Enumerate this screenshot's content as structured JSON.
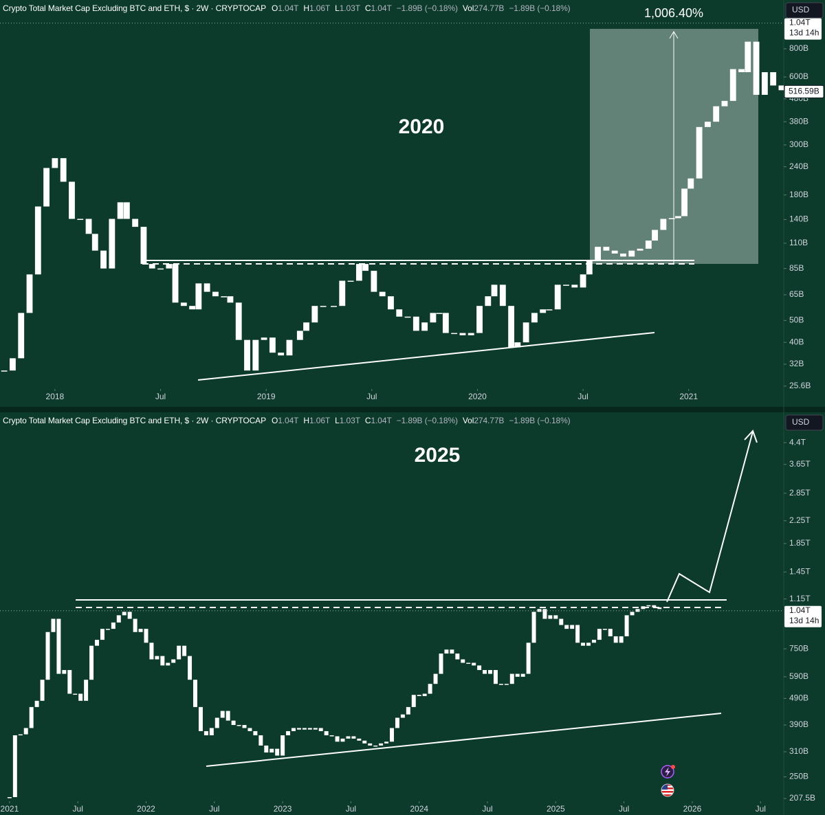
{
  "chart_data": [
    {
      "type": "candlestick",
      "title": "2020",
      "measure_label": "1,006.40%",
      "header": {
        "symbol": "Crypto Total Market Cap Excluding BTC and ETH, $ · 2W · CRYPTOCAP",
        "ohlc": [
          {
            "key": "O",
            "value": "1.04T"
          },
          {
            "key": "H",
            "value": "1.06T"
          },
          {
            "key": "L",
            "value": "1.03T"
          },
          {
            "key": "C",
            "value": "1.04T"
          }
        ],
        "change": "−1.89B (−0.18%)",
        "volume": {
          "key": "Vol",
          "value": "274.77B"
        },
        "volume_change": "−1.89B (−0.18%)"
      },
      "currency": "USD",
      "log": true,
      "grid": false,
      "color": "#ffffff",
      "x": [
        2017.76,
        2017.8,
        2017.84,
        2017.88,
        2017.92,
        2017.96,
        2018,
        2018.04,
        2018.08,
        2018.12,
        2018.16,
        2018.19,
        2018.23,
        2018.27,
        2018.31,
        2018.34,
        2018.38,
        2018.42,
        2018.46,
        2018.5,
        2018.54,
        2018.57,
        2018.61,
        2018.65,
        2018.68,
        2018.72,
        2018.76,
        2018.8,
        2018.83,
        2018.87,
        2018.91,
        2018.95,
        2018.99,
        2019.03,
        2019.07,
        2019.11,
        2019.16,
        2019.19,
        2019.23,
        2019.27,
        2019.32,
        2019.36,
        2019.4,
        2019.44,
        2019.47,
        2019.51,
        2019.55,
        2019.59,
        2019.63,
        2019.67,
        2019.71,
        2019.75,
        2019.79,
        2019.82,
        2019.85,
        2019.89,
        2019.93,
        2019.97,
        2020.01,
        2020.05,
        2020.08,
        2020.12,
        2020.16,
        2020.19,
        2020.23,
        2020.27,
        2020.31,
        2020.34,
        2020.38,
        2020.42,
        2020.46,
        2020.5,
        2020.53,
        2020.57,
        2020.61,
        2020.65,
        2020.69,
        2020.73,
        2020.77,
        2020.81,
        2020.84,
        2020.88,
        2020.92,
        2020.95,
        2020.98,
        2021.01,
        2021.05,
        2021.09,
        2021.13,
        2021.17,
        2021.21,
        2021.25,
        2021.28,
        2021.32,
        2021.36,
        2021.4,
        2021.44
      ],
      "values": [
        30,
        34,
        54,
        80,
        160,
        237,
        262,
        206,
        141,
        141,
        121,
        102,
        85,
        141,
        167,
        141,
        130,
        89,
        85,
        85,
        89,
        60,
        58,
        56,
        73,
        67,
        64,
        64,
        60,
        41,
        30,
        41,
        42,
        36,
        35,
        41,
        45,
        49,
        58,
        58,
        58,
        75,
        75,
        89,
        83,
        67,
        64,
        56,
        52,
        52,
        45,
        49,
        54,
        54,
        44,
        44,
        43,
        44,
        58,
        64,
        72,
        58,
        38,
        40,
        49,
        54,
        56,
        56,
        72,
        72,
        70,
        80,
        92,
        106,
        102,
        99,
        96,
        102,
        104,
        113,
        126,
        141,
        142,
        145,
        192,
        213,
        360,
        380,
        445,
        470,
        650,
        630,
        860,
        500,
        630,
        550,
        524
      ],
      "xlim": [
        2017.74,
        2021.45
      ],
      "xticks": [
        2018,
        {
          "value": 2018.5,
          "label": "Jul"
        },
        2019,
        {
          "value": 2019.5,
          "label": "Jul"
        },
        2020,
        {
          "value": 2020.5,
          "label": "Jul"
        },
        2021
      ],
      "ylim": [
        24.86,
        1316
      ],
      "yticks": [
        {
          "value": 25.6,
          "label": "25.6B"
        },
        {
          "value": 32,
          "label": "32B"
        },
        {
          "value": 40,
          "label": "40B"
        },
        {
          "value": 50,
          "label": "50B"
        },
        {
          "value": 65,
          "label": "65B"
        },
        {
          "value": 85,
          "label": "85B"
        },
        {
          "value": 110,
          "label": "110B"
        },
        {
          "value": 140,
          "label": "140B"
        },
        {
          "value": 180,
          "label": "180B"
        },
        {
          "value": 240,
          "label": "240B"
        },
        {
          "value": 300,
          "label": "300B"
        },
        {
          "value": 380,
          "label": "380B"
        },
        {
          "value": 480,
          "label": "480B"
        },
        {
          "value": 600,
          "label": "600B"
        },
        {
          "value": 800,
          "label": "800B"
        }
      ],
      "last_price": {
        "value": 1040,
        "label": "1.04T"
      },
      "countdown": "13d 14h",
      "price_marker": {
        "value": 516.59,
        "label": "516.59B"
      }
    },
    {
      "type": "candlestick",
      "title": "2025",
      "header": {
        "symbol": "Crypto Total Market Cap Excluding BTC and ETH, $ · 2W · CRYPTOCAP",
        "ohlc": [
          {
            "key": "O",
            "value": "1.04T"
          },
          {
            "key": "H",
            "value": "1.06T"
          },
          {
            "key": "L",
            "value": "1.03T"
          },
          {
            "key": "C",
            "value": "1.04T"
          }
        ],
        "change": "−1.89B (−0.18%)",
        "volume": {
          "key": "Vol",
          "value": "274.77B"
        },
        "volume_change": "−1.89B (−0.18%)"
      },
      "currency": "USD",
      "log": true,
      "grid": false,
      "color": "#ffffff",
      "x": [
        2021,
        2021.04,
        2021.08,
        2021.12,
        2021.16,
        2021.2,
        2021.24,
        2021.28,
        2021.32,
        2021.36,
        2021.4,
        2021.44,
        2021.48,
        2021.52,
        2021.56,
        2021.6,
        2021.64,
        2021.68,
        2021.72,
        2021.76,
        2021.8,
        2021.84,
        2021.88,
        2021.92,
        2021.96,
        2022,
        2022.04,
        2022.08,
        2022.12,
        2022.16,
        2022.2,
        2022.24,
        2022.28,
        2022.32,
        2022.36,
        2022.4,
        2022.44,
        2022.48,
        2022.52,
        2022.56,
        2022.6,
        2022.64,
        2022.68,
        2022.72,
        2022.76,
        2022.8,
        2022.84,
        2022.88,
        2022.92,
        2022.96,
        2023,
        2023.04,
        2023.08,
        2023.12,
        2023.16,
        2023.2,
        2023.24,
        2023.28,
        2023.32,
        2023.36,
        2023.4,
        2023.44,
        2023.48,
        2023.52,
        2023.56,
        2023.6,
        2023.64,
        2023.68,
        2023.72,
        2023.76,
        2023.8,
        2023.84,
        2023.88,
        2023.92,
        2023.96,
        2024,
        2024.04,
        2024.08,
        2024.12,
        2024.16,
        2024.2,
        2024.24,
        2024.28,
        2024.32,
        2024.36,
        2024.4,
        2024.44,
        2024.48,
        2024.52,
        2024.56,
        2024.6,
        2024.64,
        2024.68,
        2024.72,
        2024.76,
        2024.8,
        2024.84,
        2024.88,
        2024.92,
        2024.96,
        2025,
        2025.04,
        2025.08,
        2025.12,
        2025.16,
        2025.2,
        2025.24,
        2025.28,
        2025.32,
        2025.36,
        2025.4,
        2025.44,
        2025.48,
        2025.52,
        2025.56,
        2025.6,
        2025.64,
        2025.68,
        2025.72,
        2025.76
      ],
      "values": [
        210,
        357,
        360,
        380,
        455,
        480,
        575,
        866,
        970,
        605,
        625,
        510,
        510,
        480,
        575,
        770,
        810,
        890,
        890,
        940,
        1000,
        1030,
        970,
        866,
        890,
        790,
        685,
        705,
        650,
        665,
        685,
        770,
        705,
        575,
        455,
        370,
        357,
        380,
        415,
        440,
        405,
        390,
        390,
        380,
        370,
        357,
        327,
        308,
        318,
        300,
        357,
        370,
        380,
        375,
        380,
        375,
        380,
        370,
        357,
        354,
        338,
        347,
        354,
        347,
        341,
        333,
        327,
        327,
        333,
        338,
        380,
        415,
        427,
        455,
        505,
        500,
        510,
        555,
        605,
        720,
        745,
        720,
        685,
        665,
        665,
        650,
        625,
        605,
        625,
        555,
        555,
        555,
        605,
        590,
        605,
        790,
        1030,
        1055,
        970,
        1000,
        970,
        920,
        890,
        920,
        790,
        770,
        790,
        810,
        890,
        890,
        835,
        790,
        835,
        1000,
        1030,
        1055,
        1080,
        1090,
        1070,
        1055
      ],
      "xlim": [
        2020.93,
        2026.67
      ],
      "xticks": [
        2021,
        {
          "value": 2021.5,
          "label": "Jul"
        },
        2022,
        {
          "value": 2022.5,
          "label": "Jul"
        },
        2023,
        {
          "value": 2023.5,
          "label": "Jul"
        },
        2024,
        {
          "value": 2024.5,
          "label": "Jul"
        },
        2025,
        {
          "value": 2025.5,
          "label": "Jul"
        },
        2026,
        {
          "value": 2026.5,
          "label": "Jul"
        }
      ],
      "ylim": [
        202.7,
        5707
      ],
      "yticks": [
        {
          "value": 207.5,
          "label": "207.5B"
        },
        {
          "value": 250,
          "label": "250B"
        },
        {
          "value": 310,
          "label": "310B"
        },
        {
          "value": 390,
          "label": "390B"
        },
        {
          "value": 490,
          "label": "490B"
        },
        {
          "value": 590,
          "label": "590B"
        },
        {
          "value": 750,
          "label": "750B"
        },
        {
          "value": 1150,
          "label": "1.15T"
        },
        {
          "value": 1450,
          "label": "1.45T"
        },
        {
          "value": 1850,
          "label": "1.85T"
        },
        {
          "value": 2250,
          "label": "2.25T"
        },
        {
          "value": 2850,
          "label": "2.85T"
        },
        {
          "value": 3650,
          "label": "3.65T"
        },
        {
          "value": 4400,
          "label": "4.4T"
        }
      ],
      "last_price": {
        "value": 1040,
        "label": "1.04T"
      },
      "countdown": "13d 14h"
    }
  ]
}
